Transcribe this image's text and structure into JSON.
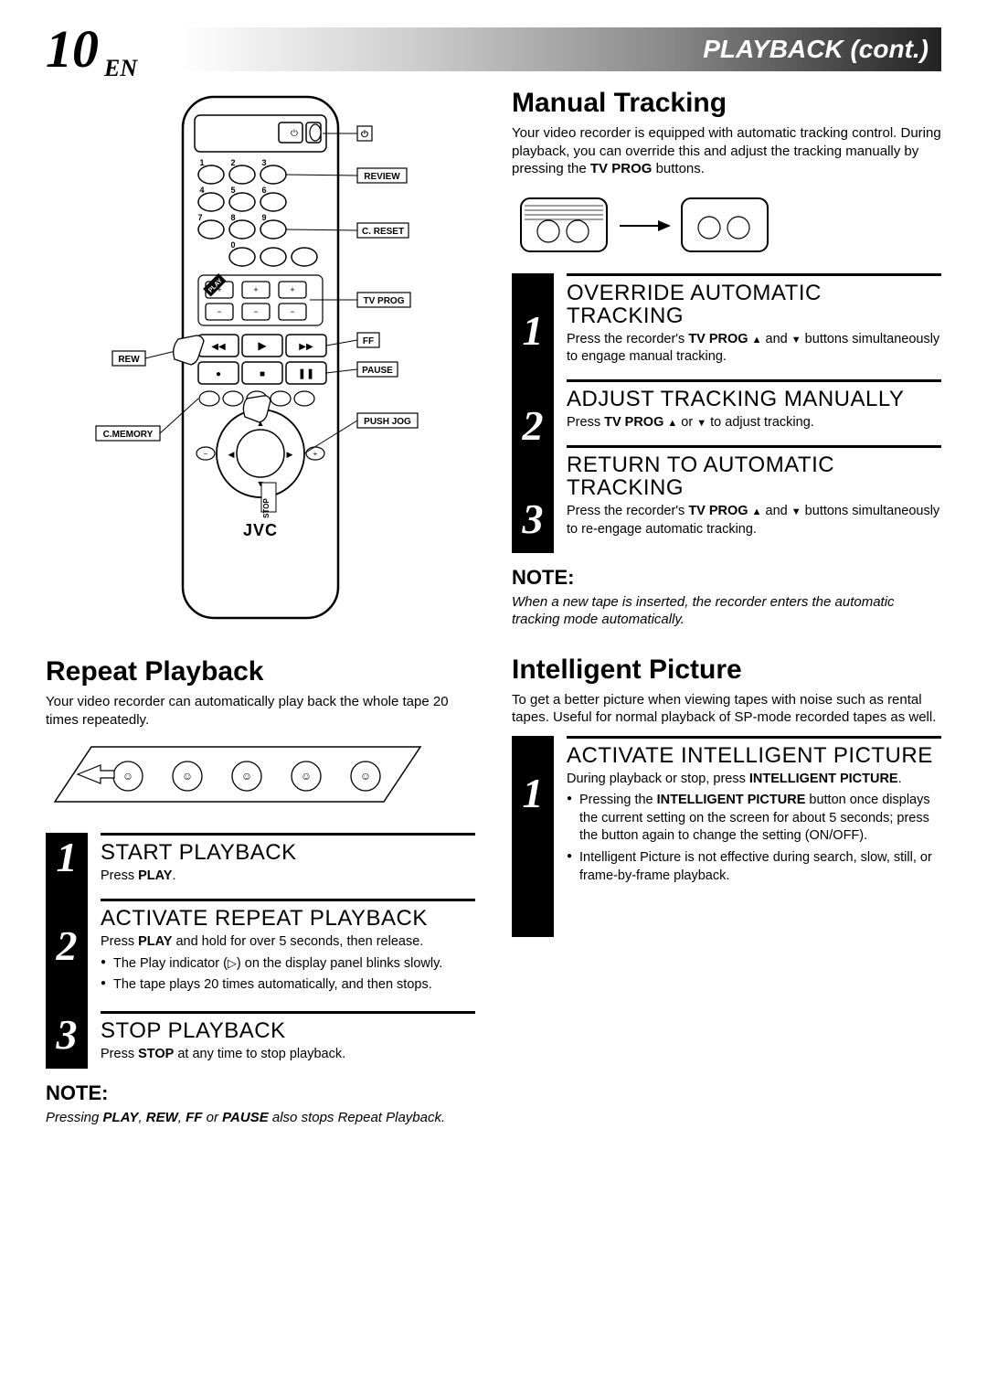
{
  "header": {
    "page_number": "10",
    "lang": "EN",
    "title": "PLAYBACK (cont.)"
  },
  "remote": {
    "labels": {
      "review": "REVIEW",
      "c_reset": "C. RESET",
      "tv_prog": "TV PROG",
      "ff": "FF",
      "rew": "REW",
      "pause": "PAUSE",
      "push_jog": "PUSH JOG",
      "c_memory": "C.MEMORY",
      "stop": "STOP",
      "play": "PLAY",
      "brand": "JVC"
    }
  },
  "repeat_playback": {
    "heading": "Repeat Playback",
    "intro": "Your video recorder can automatically play back the whole tape 20 times repeatedly.",
    "steps": [
      {
        "num": "1",
        "title": "START PLAYBACK",
        "body_html": "Press <b>PLAY</b>."
      },
      {
        "num": "2",
        "title": "ACTIVATE REPEAT PLAYBACK",
        "body_html": "Press <b>PLAY</b> and hold for over 5 seconds, then release.",
        "bullets_html": [
          "The Play indicator (<span class='play-tri'></span>) on the display panel blinks slowly.",
          "The tape plays 20 times automatically, and then stops."
        ]
      },
      {
        "num": "3",
        "title": "STOP PLAYBACK",
        "body_html": "Press <b>STOP</b> at any time to stop playback."
      }
    ],
    "note_heading": "NOTE:",
    "note_body_html": "Pressing <b>PLAY</b>, <b>REW</b>, <b>FF</b> or <b>PAUSE</b> also stops Repeat Playback."
  },
  "manual_tracking": {
    "heading": "Manual Tracking",
    "intro_html": "Your video recorder is equipped with automatic tracking control. During playback, you can override this and adjust the tracking manually by pressing the <b>TV PROG</b> buttons.",
    "steps": [
      {
        "num": "1",
        "title": "OVERRIDE AUTOMATIC TRACKING",
        "body_html": "Press the recorder's <b>TV PROG</b> <span class='tri-up'></span> and <span class='tri-dn'></span> buttons simultaneously to engage manual tracking."
      },
      {
        "num": "2",
        "title": "ADJUST TRACKING MANUALLY",
        "body_html": "Press <b>TV PROG</b> <span class='tri-up'></span> or <span class='tri-dn'></span> to adjust tracking."
      },
      {
        "num": "3",
        "title": "RETURN TO AUTOMATIC TRACKING",
        "body_html": "Press the recorder's <b>TV PROG</b> <span class='tri-up'></span> and <span class='tri-dn'></span> buttons simultaneously to re-engage automatic tracking."
      }
    ],
    "note_heading": "NOTE:",
    "note_body": "When a new tape is inserted, the recorder enters the automatic tracking mode automatically."
  },
  "intelligent_picture": {
    "heading": "Intelligent Picture",
    "intro": "To get a better picture when viewing tapes with noise such as rental tapes. Useful for normal playback of SP-mode recorded tapes as well.",
    "steps": [
      {
        "num": "1",
        "title": "ACTIVATE INTELLIGENT PICTURE",
        "body_html": "During playback or stop, press <b>INTELLIGENT PICTURE</b>.",
        "bullets_html": [
          "Pressing the <b>INTELLIGENT PICTURE</b> button once displays the current setting on the screen for about 5 seconds; press the button again to change the setting (ON/OFF).",
          "Intelligent Picture is not effective during search, slow, still, or frame-by-frame playback."
        ]
      }
    ]
  },
  "style": {
    "page_bg": "#ffffff",
    "text_color": "#000000",
    "num_block_bg": "#000000",
    "num_block_fg": "#ffffff",
    "rule_color": "#000000",
    "header_gradient_stops": [
      "#ffffff",
      "#d0d0d0",
      "#888888",
      "#222222"
    ],
    "font_body": "Helvetica",
    "font_num": "Times italic",
    "h2_fontsize_pt": 22,
    "step_title_fontsize_pt": 18,
    "body_fontsize_pt": 11
  }
}
